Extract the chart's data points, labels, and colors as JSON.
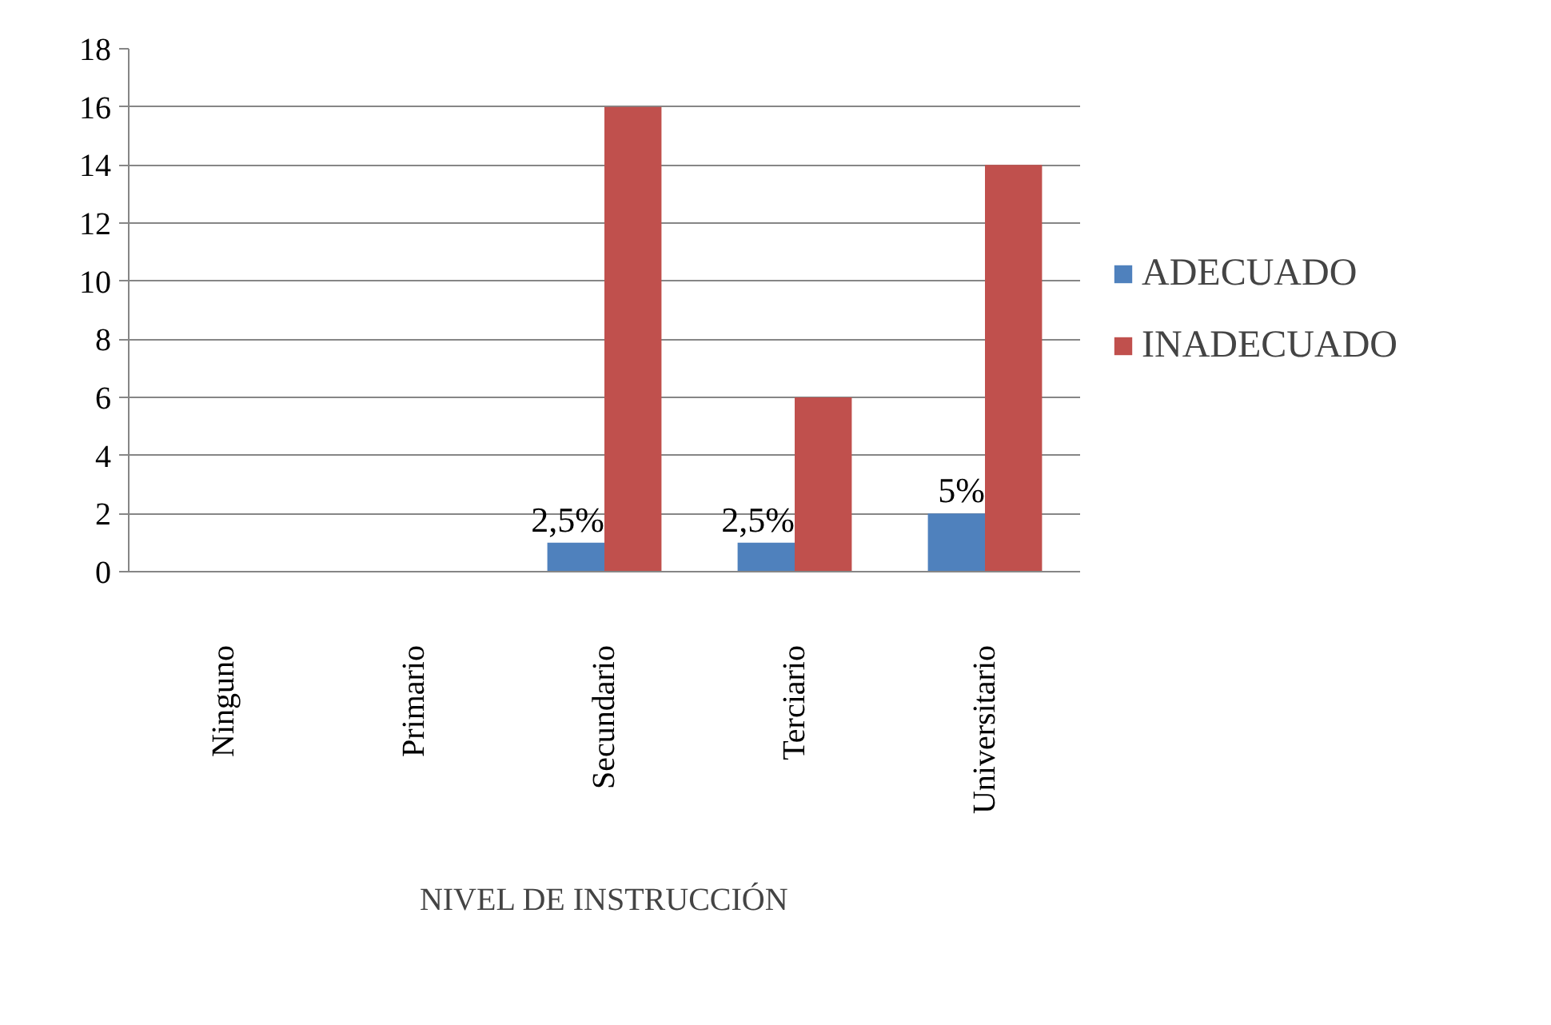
{
  "chart_data": {
    "type": "bar",
    "xlabel": "NIVEL DE INSTRUCCIÓN",
    "categories": [
      "Ninguno",
      "Primario",
      "Secundario",
      "Terciario",
      "Universitario"
    ],
    "series": [
      {
        "name": "ADECUADO",
        "color": "#4f81bd",
        "values": [
          0,
          0,
          1,
          1,
          2
        ]
      },
      {
        "name": "INADECUADO",
        "color": "#c0504d",
        "values": [
          0,
          0,
          16,
          6,
          14
        ]
      }
    ],
    "annotations": [
      {
        "text": "2,5%",
        "x": "Secundario",
        "y": 1
      },
      {
        "text": "2,5%",
        "x": "Terciario",
        "y": 1
      },
      {
        "text": "5%",
        "x": "Universitario",
        "y": 2
      }
    ],
    "ylim": [
      0,
      18
    ],
    "yticks": [
      0,
      2,
      4,
      6,
      8,
      10,
      12,
      14,
      16,
      18
    ],
    "grid": "y",
    "legend": "right"
  }
}
